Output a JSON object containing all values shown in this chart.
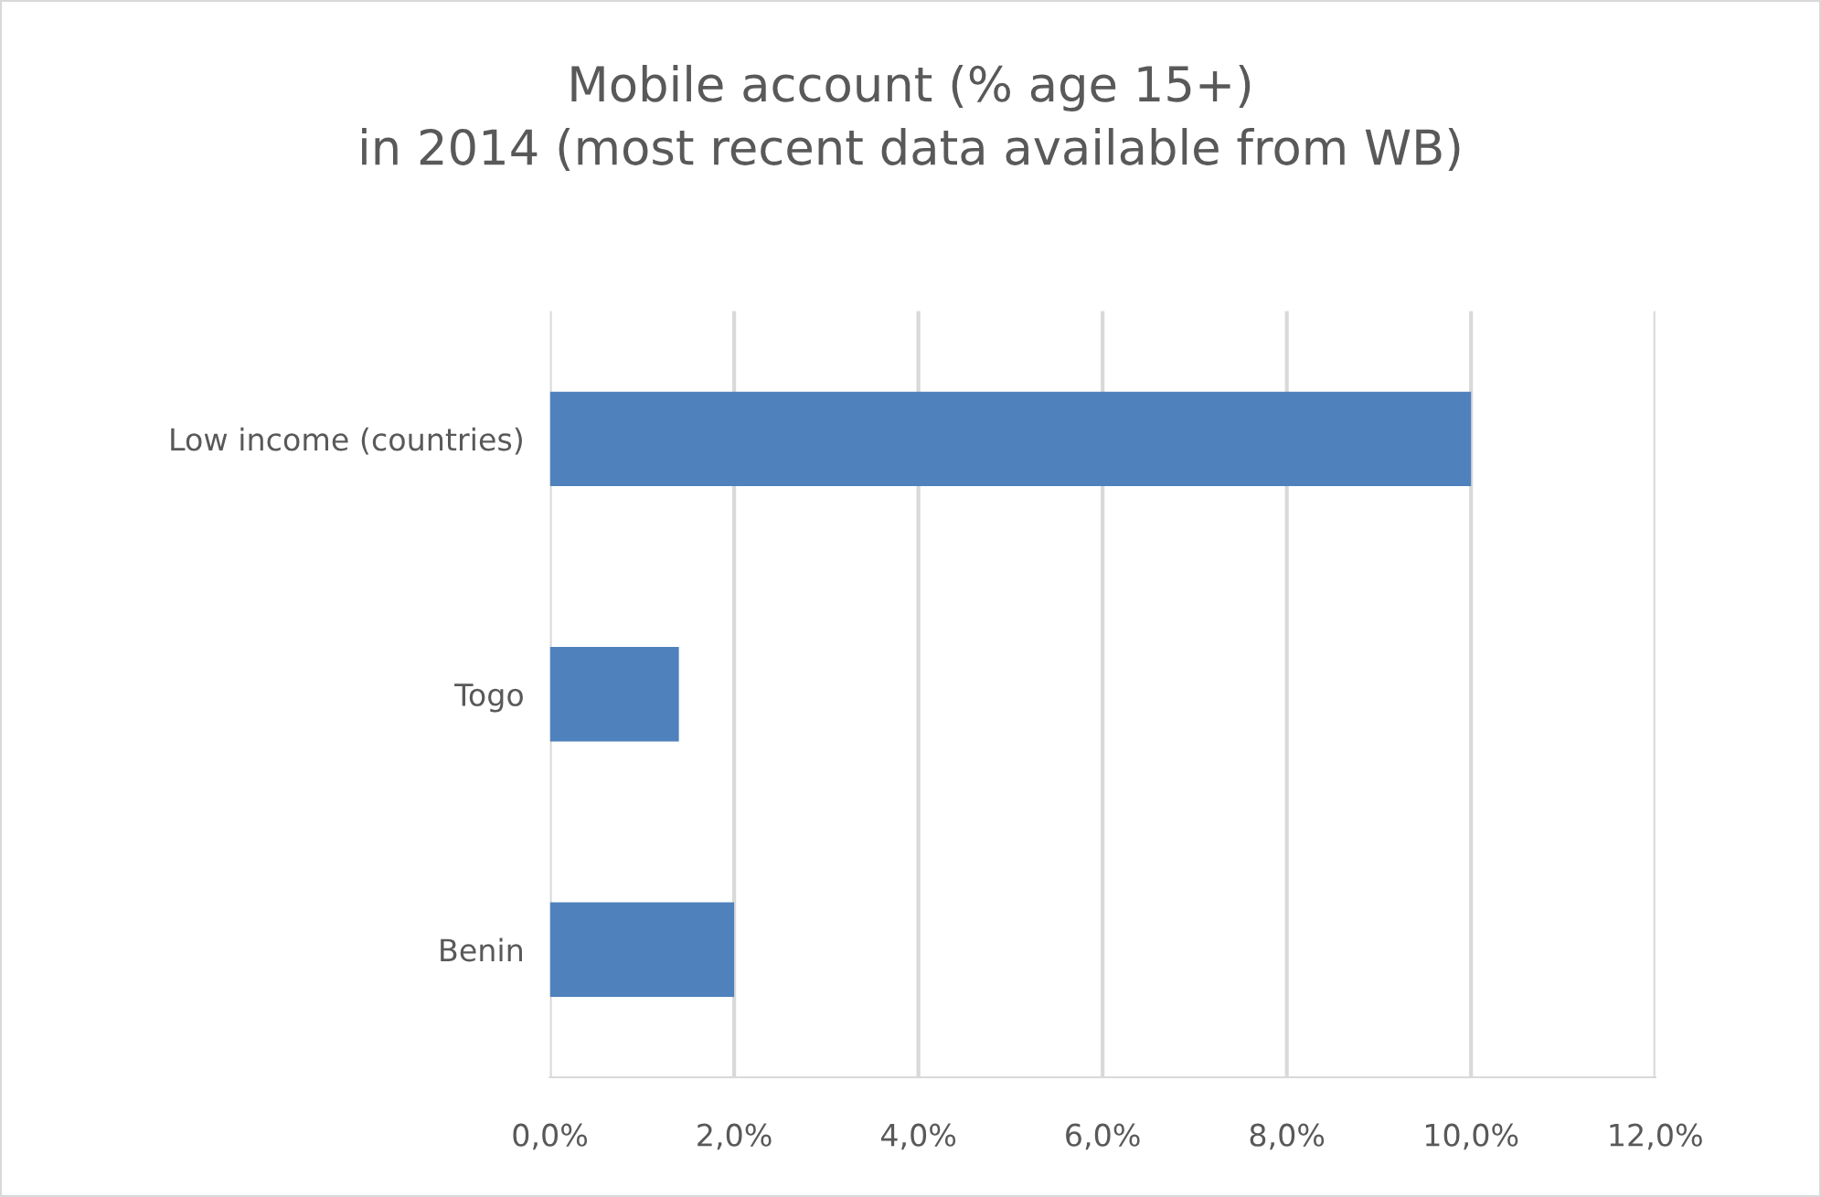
{
  "chart_data": {
    "type": "bar",
    "orientation": "horizontal",
    "title": "Mobile account (% age 15+)\nin 2014 (most recent data available from WB)",
    "categories": [
      "Low income (countries)",
      "Togo",
      "Benin"
    ],
    "values": [
      10.0,
      1.4,
      2.0
    ],
    "color": "#4f81bd",
    "xlim": [
      0,
      12
    ],
    "xticks": [
      {
        "value": 0,
        "label": "0,0%"
      },
      {
        "value": 2,
        "label": "2,0%"
      },
      {
        "value": 4,
        "label": "4,0%"
      },
      {
        "value": 6,
        "label": "6,0%"
      },
      {
        "value": 8,
        "label": "8,0%"
      },
      {
        "value": 10,
        "label": "10,0%"
      },
      {
        "value": 12,
        "label": "12,0%"
      }
    ],
    "grid": "x",
    "legend": false
  }
}
